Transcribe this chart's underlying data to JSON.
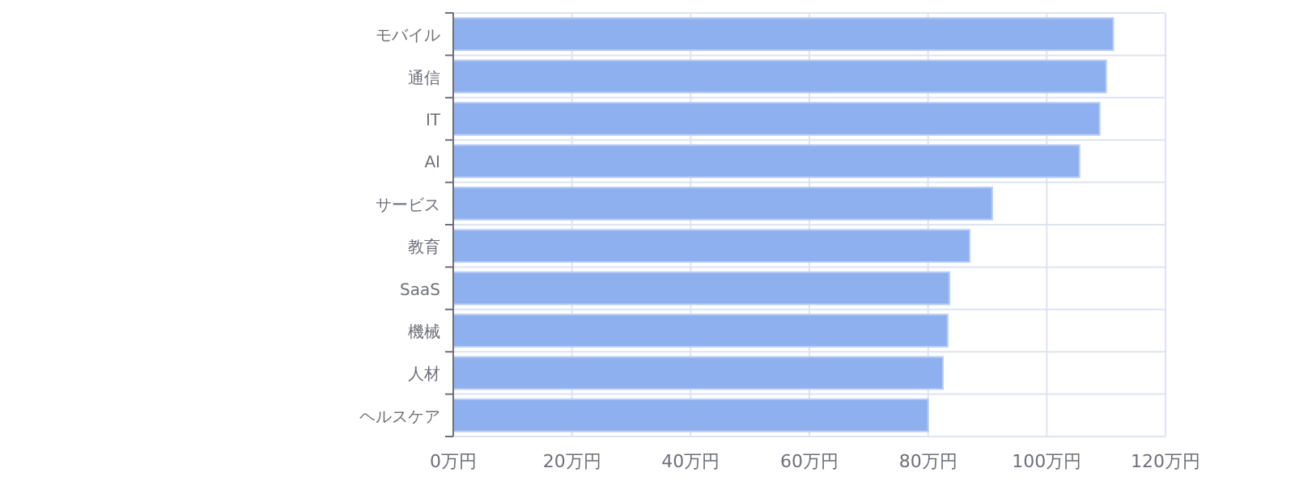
{
  "chart_data": {
    "type": "bar",
    "orientation": "horizontal",
    "categories": [
      "モバイル",
      "通信",
      "IT",
      "AI",
      "サービス",
      "教育",
      "SaaS",
      "機械",
      "人材",
      "ヘルスケア"
    ],
    "values": [
      111.2,
      110,
      108.9,
      105.5,
      90.8,
      87,
      83.6,
      83.3,
      82.5,
      80
    ],
    "color": "#8fb0ef",
    "xlim": [
      0,
      120
    ],
    "xticks": [
      {
        "value": 0,
        "label": "0万円"
      },
      {
        "value": 20,
        "label": "20万円"
      },
      {
        "value": 40,
        "label": "40万円"
      },
      {
        "value": 60,
        "label": "60万円"
      },
      {
        "value": 80,
        "label": "80万円"
      },
      {
        "value": 100,
        "label": "100万円"
      },
      {
        "value": 120,
        "label": "120万円"
      }
    ],
    "grid": true
  }
}
